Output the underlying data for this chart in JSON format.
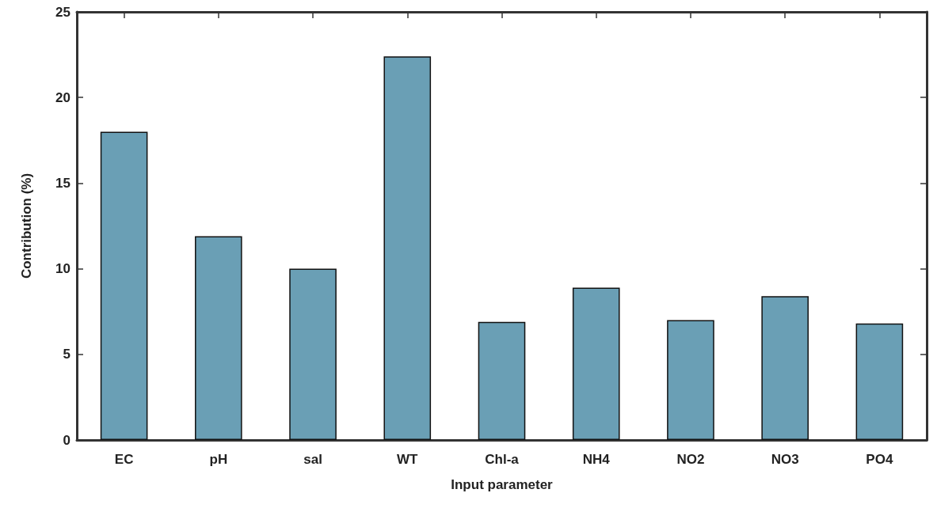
{
  "chart_data": {
    "type": "bar",
    "xlabel": "Input parameter",
    "ylabel": "Contribution (%)",
    "categories": [
      "EC",
      "pH",
      "sal",
      "WT",
      "Chl-a",
      "NH4",
      "NO2",
      "NO3",
      "PO4"
    ],
    "values": [
      18.0,
      11.9,
      10.0,
      22.4,
      6.9,
      8.9,
      7.0,
      8.4,
      6.8
    ],
    "color": "#6a9fb5",
    "ylim": [
      0,
      25
    ],
    "yticks": [
      0,
      5,
      10,
      15,
      20,
      25
    ],
    "grid": false
  }
}
